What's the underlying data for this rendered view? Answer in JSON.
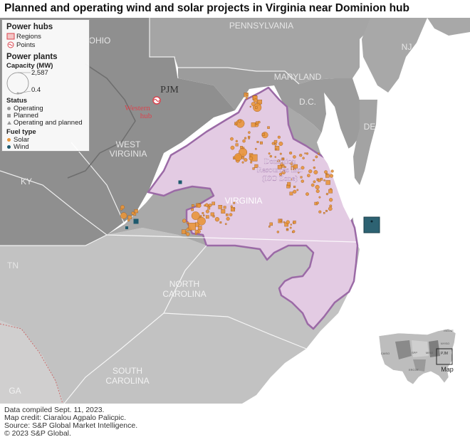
{
  "title": "Planned and operating wind and solar projects in Virginia near Dominion hub",
  "legend": {
    "power_hubs_heading": "Power hubs",
    "regions_label": "Regions",
    "points_label": "Points",
    "power_plants_heading": "Power plants",
    "capacity_heading": "Capacity (MW)",
    "capacity_max": "2,587",
    "capacity_min": "0.4",
    "status_heading": "Status",
    "status_items": [
      "Operating",
      "Planned",
      "Operating and planned"
    ],
    "fuel_heading": "Fuel type",
    "fuel_items": [
      "Solar",
      "Wind"
    ]
  },
  "map_labels": {
    "ohio": "OHIO",
    "pennsylvania": "PENNSYLVANIA",
    "nj": "NJ",
    "maryland": "MARYLAND",
    "dc": "D.C.",
    "de": "DE",
    "west_virginia_1": "WEST",
    "west_virginia_2": "VIRGINIA",
    "ky": "KY",
    "tn": "TN",
    "virginia": "VIRGINIA",
    "north_carolina_1": "NORTH",
    "north_carolina_2": "CAROLINA",
    "south_carolina_1": "SOUTH",
    "south_carolina_2": "CAROLINA",
    "ga": "GA",
    "pjm": "PJM",
    "western_hub_1": "Western",
    "western_hub_2": "hub",
    "dominion_1": "Dominion",
    "dominion_2": "Resources Inc.",
    "dominion_3": "(ISO Zone)"
  },
  "inset": {
    "label": "Map",
    "tiny_labels": [
      "ISO-NE",
      "NYISO",
      "PJM",
      "MISO",
      "CAISO",
      "SPP",
      "ERCOT"
    ]
  },
  "footer": [
    "Data compiled Sept. 11, 2023.",
    "Map credit: Ciaralou Agpalo Palicpic.",
    "Source: S&P Global Market Intelligence.",
    "© 2023 S&P Global."
  ],
  "colors": {
    "water": "#ffffff",
    "land": "#a6a6a6",
    "land_dark": "#8e8e8e",
    "land_light": "#cfcfcf",
    "zone_fill": "#e4cce4",
    "zone_border": "#9b6aa6",
    "solar": "#e8953a",
    "wind": "#1e5a6e",
    "hub_red": "#d9454f"
  }
}
